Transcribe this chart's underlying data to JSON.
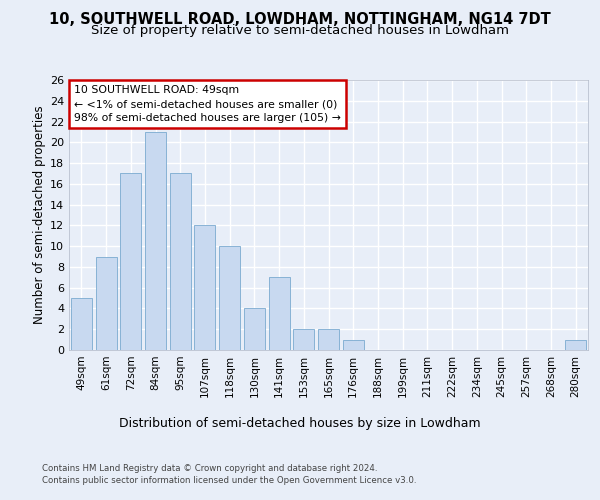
{
  "title1": "10, SOUTHWELL ROAD, LOWDHAM, NOTTINGHAM, NG14 7DT",
  "title2": "Size of property relative to semi-detached houses in Lowdham",
  "xlabel": "Distribution of semi-detached houses by size in Lowdham",
  "ylabel": "Number of semi-detached properties",
  "categories": [
    "49sqm",
    "61sqm",
    "72sqm",
    "84sqm",
    "95sqm",
    "107sqm",
    "118sqm",
    "130sqm",
    "141sqm",
    "153sqm",
    "165sqm",
    "176sqm",
    "188sqm",
    "199sqm",
    "211sqm",
    "222sqm",
    "234sqm",
    "245sqm",
    "257sqm",
    "268sqm",
    "280sqm"
  ],
  "values": [
    5,
    9,
    17,
    21,
    17,
    12,
    10,
    4,
    7,
    2,
    2,
    1,
    0,
    0,
    0,
    0,
    0,
    0,
    0,
    0,
    1
  ],
  "bar_color": "#c8d9f0",
  "bar_edge_color": "#7aaad0",
  "annotation_box_text": "10 SOUTHWELL ROAD: 49sqm\n← <1% of semi-detached houses are smaller (0)\n98% of semi-detached houses are larger (105) →",
  "annotation_box_color": "#ffffff",
  "annotation_box_edge": "#cc0000",
  "ylim": [
    0,
    26
  ],
  "yticks": [
    0,
    2,
    4,
    6,
    8,
    10,
    12,
    14,
    16,
    18,
    20,
    22,
    24,
    26
  ],
  "footer1": "Contains HM Land Registry data © Crown copyright and database right 2024.",
  "footer2": "Contains public sector information licensed under the Open Government Licence v3.0.",
  "bg_color": "#e8eef8",
  "plot_bg_color": "#e8eef8",
  "grid_color": "#ffffff",
  "title1_fontsize": 10.5,
  "title2_fontsize": 9.5,
  "tick_fontsize": 7.5,
  "ylabel_fontsize": 8.5,
  "xlabel_fontsize": 9,
  "footer_fontsize": 6.2,
  "annot_fontsize": 7.8
}
